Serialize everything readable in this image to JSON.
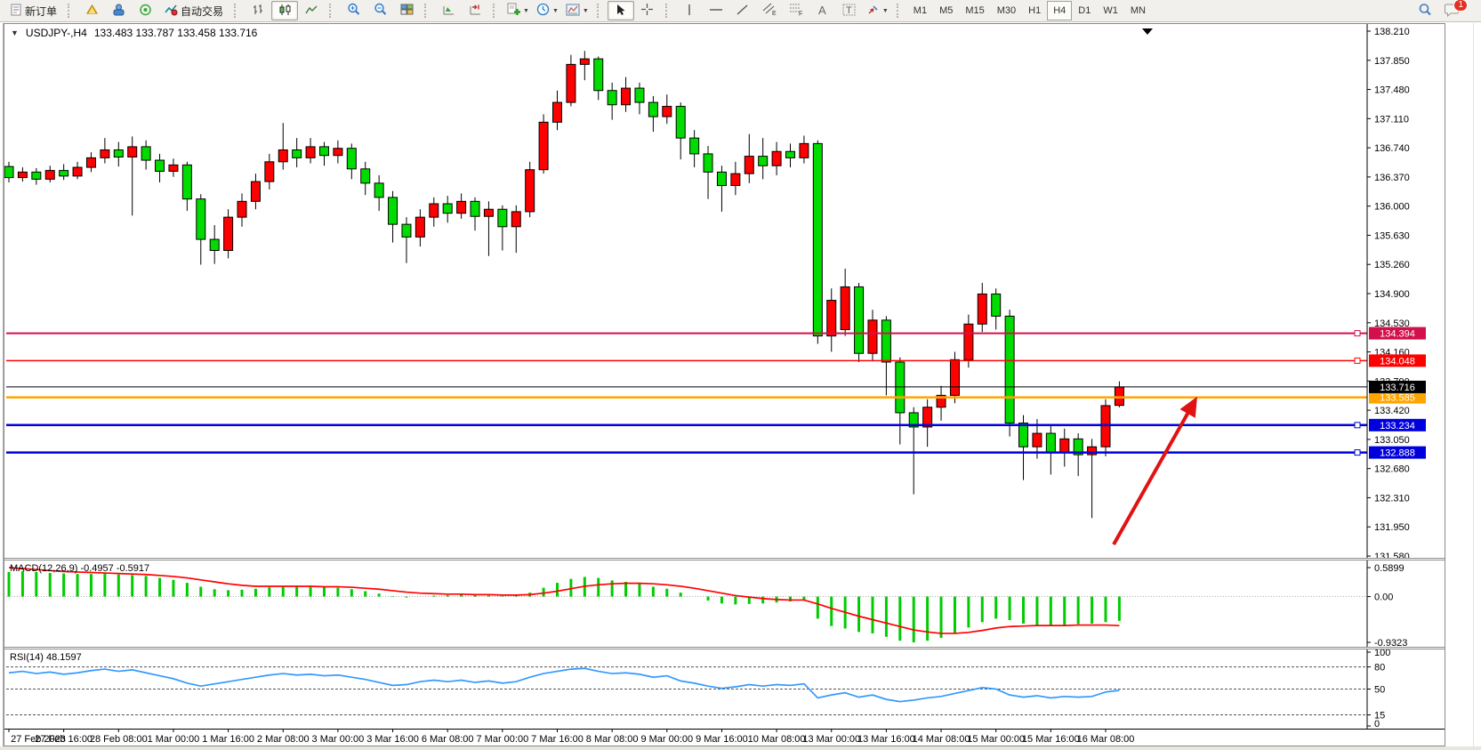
{
  "toolbar": {
    "new_order_label": "新订单",
    "autotrading_label": "自动交易",
    "timeframes": [
      "M1",
      "M5",
      "M15",
      "M30",
      "H1",
      "H4",
      "D1",
      "W1",
      "MN"
    ],
    "active_timeframe": "H4",
    "notification_badge": "1"
  },
  "chart": {
    "symbol_title": "USDJPY-,H4",
    "ohlc_title": "133.483 133.787 133.458 133.716",
    "macd_label": "MACD(12,26,9) -0.4957 -0.5917",
    "rsi_label": "RSI(14) 48.1597"
  },
  "chart_data": {
    "type": "candlestick",
    "symbol": "USDJPY-",
    "period": "H4",
    "current_bar_ohlc": {
      "open": 133.483,
      "high": 133.787,
      "low": 133.458,
      "close": 133.716
    },
    "up_color": "#ff0000",
    "down_color": "#00dc00",
    "price_axis_ticks": [
      "138.210",
      "137.850",
      "137.480",
      "137.110",
      "136.740",
      "136.370",
      "136.000",
      "135.630",
      "135.260",
      "134.900",
      "134.530",
      "134.160",
      "133.790",
      "133.420",
      "133.050",
      "132.680",
      "132.310",
      "131.950",
      "131.580"
    ],
    "hlines": [
      {
        "price": 134.394,
        "label": "134.394",
        "color": "#d2104c",
        "marker": true
      },
      {
        "price": 134.048,
        "label": "134.048",
        "color": "#ff0000",
        "marker": true
      },
      {
        "price": 133.585,
        "label": "133.585",
        "color": "#ffa500",
        "marker": false
      },
      {
        "price": 133.234,
        "label": "133.234",
        "color": "#0000dd",
        "marker": true
      },
      {
        "price": 132.888,
        "label": "132.888",
        "color": "#0000dd",
        "marker": true
      }
    ],
    "bid_line": {
      "price": 133.716,
      "label": "133.716",
      "color": "#000000"
    },
    "candles": [
      [
        136.5,
        136.56,
        136.3,
        136.36
      ],
      [
        136.36,
        136.49,
        136.31,
        136.43
      ],
      [
        136.43,
        136.48,
        136.27,
        136.34
      ],
      [
        136.34,
        136.51,
        136.3,
        136.45
      ],
      [
        136.45,
        136.53,
        136.33,
        136.38
      ],
      [
        136.38,
        136.56,
        136.34,
        136.49
      ],
      [
        136.49,
        136.68,
        136.43,
        136.61
      ],
      [
        136.61,
        136.86,
        136.54,
        136.71
      ],
      [
        136.71,
        136.81,
        136.5,
        136.62
      ],
      [
        136.62,
        136.88,
        135.88,
        136.75
      ],
      [
        136.75,
        136.83,
        136.46,
        136.58
      ],
      [
        136.58,
        136.66,
        136.3,
        136.44
      ],
      [
        136.44,
        136.6,
        136.37,
        136.52
      ],
      [
        136.52,
        136.56,
        135.94,
        136.09
      ],
      [
        136.09,
        136.15,
        135.26,
        135.58
      ],
      [
        135.58,
        135.76,
        135.27,
        135.44
      ],
      [
        135.44,
        135.96,
        135.34,
        135.86
      ],
      [
        135.86,
        136.16,
        135.74,
        136.06
      ],
      [
        136.06,
        136.41,
        135.96,
        136.31
      ],
      [
        136.31,
        136.66,
        136.21,
        136.56
      ],
      [
        136.56,
        137.05,
        136.46,
        136.71
      ],
      [
        136.71,
        136.86,
        136.49,
        136.61
      ],
      [
        136.61,
        136.86,
        136.54,
        136.75
      ],
      [
        136.75,
        136.81,
        136.51,
        136.64
      ],
      [
        136.64,
        136.83,
        136.54,
        136.73
      ],
      [
        136.73,
        136.79,
        136.34,
        136.47
      ],
      [
        136.47,
        136.56,
        136.14,
        136.29
      ],
      [
        136.29,
        136.39,
        135.94,
        136.11
      ],
      [
        136.11,
        136.19,
        135.54,
        135.77
      ],
      [
        135.77,
        135.86,
        135.28,
        135.61
      ],
      [
        135.61,
        135.96,
        135.49,
        135.86
      ],
      [
        135.86,
        136.11,
        135.74,
        136.03
      ],
      [
        136.03,
        136.13,
        135.79,
        135.91
      ],
      [
        135.91,
        136.16,
        135.84,
        136.06
      ],
      [
        136.06,
        136.11,
        135.69,
        135.87
      ],
      [
        135.87,
        136.06,
        135.37,
        135.96
      ],
      [
        135.96,
        136.01,
        135.44,
        135.74
      ],
      [
        135.74,
        136.01,
        135.41,
        135.93
      ],
      [
        135.93,
        136.56,
        135.86,
        136.46
      ],
      [
        136.46,
        137.16,
        136.41,
        137.06
      ],
      [
        137.06,
        137.46,
        136.96,
        137.31
      ],
      [
        137.31,
        137.91,
        137.26,
        137.79
      ],
      [
        137.79,
        137.96,
        137.59,
        137.86
      ],
      [
        137.86,
        137.89,
        137.34,
        137.46
      ],
      [
        137.46,
        137.56,
        137.09,
        137.28
      ],
      [
        137.28,
        137.63,
        137.19,
        137.49
      ],
      [
        137.49,
        137.56,
        137.16,
        137.31
      ],
      [
        137.31,
        137.39,
        136.94,
        137.13
      ],
      [
        137.13,
        137.41,
        137.04,
        137.26
      ],
      [
        137.26,
        137.31,
        136.59,
        136.86
      ],
      [
        136.86,
        136.96,
        136.49,
        136.66
      ],
      [
        136.66,
        136.76,
        136.09,
        136.43
      ],
      [
        136.43,
        136.51,
        135.93,
        136.26
      ],
      [
        136.26,
        136.56,
        136.14,
        136.41
      ],
      [
        136.41,
        136.91,
        136.29,
        136.63
      ],
      [
        136.63,
        136.86,
        136.34,
        136.51
      ],
      [
        136.51,
        136.81,
        136.39,
        136.69
      ],
      [
        136.69,
        136.79,
        136.49,
        136.61
      ],
      [
        136.61,
        136.89,
        136.54,
        136.79
      ],
      [
        136.79,
        136.83,
        134.26,
        134.36
      ],
      [
        134.36,
        134.96,
        134.16,
        134.81
      ],
      [
        134.44,
        135.21,
        134.36,
        134.98
      ],
      [
        134.98,
        135.03,
        134.03,
        134.14
      ],
      [
        134.14,
        134.69,
        134.04,
        134.56
      ],
      [
        134.56,
        134.61,
        133.61,
        134.03
      ],
      [
        134.03,
        134.09,
        132.99,
        133.39
      ],
      [
        133.39,
        133.46,
        132.36,
        133.21
      ],
      [
        133.21,
        133.56,
        132.96,
        133.46
      ],
      [
        133.46,
        133.73,
        133.29,
        133.61
      ],
      [
        133.61,
        134.16,
        133.51,
        134.06
      ],
      [
        134.06,
        134.63,
        133.96,
        134.51
      ],
      [
        134.51,
        135.03,
        134.41,
        134.89
      ],
      [
        134.89,
        134.96,
        134.44,
        134.61
      ],
      [
        134.61,
        134.69,
        133.09,
        133.26
      ],
      [
        133.26,
        133.36,
        132.54,
        132.96
      ],
      [
        132.96,
        133.31,
        132.81,
        133.13
      ],
      [
        133.13,
        133.23,
        132.61,
        132.89
      ],
      [
        132.89,
        133.19,
        132.71,
        133.06
      ],
      [
        133.06,
        133.13,
        132.59,
        132.86
      ],
      [
        132.86,
        133.06,
        132.06,
        132.96
      ],
      [
        132.96,
        133.56,
        132.84,
        133.48
      ],
      [
        133.483,
        133.787,
        133.458,
        133.716
      ]
    ],
    "macd": {
      "params": "12,26,9",
      "axis_labels": [
        "0.5899",
        "0.00",
        "-0.9323"
      ],
      "max": 0.5899,
      "min": -0.9323,
      "hist_color": "#00cc00",
      "signal_color": "#ff0000",
      "histogram": [
        0.5,
        0.52,
        0.5,
        0.48,
        0.47,
        0.46,
        0.46,
        0.47,
        0.45,
        0.44,
        0.42,
        0.38,
        0.34,
        0.28,
        0.2,
        0.15,
        0.13,
        0.14,
        0.16,
        0.19,
        0.21,
        0.21,
        0.2,
        0.19,
        0.18,
        0.15,
        0.11,
        0.06,
        0.01,
        -0.02,
        0.0,
        0.02,
        0.03,
        0.04,
        0.03,
        0.02,
        0.01,
        0.02,
        0.08,
        0.18,
        0.28,
        0.36,
        0.4,
        0.38,
        0.33,
        0.3,
        0.26,
        0.2,
        0.16,
        0.08,
        0.0,
        -0.08,
        -0.14,
        -0.16,
        -0.15,
        -0.14,
        -0.12,
        -0.1,
        -0.08,
        -0.45,
        -0.6,
        -0.65,
        -0.72,
        -0.75,
        -0.82,
        -0.9,
        -0.9323,
        -0.9,
        -0.84,
        -0.75,
        -0.63,
        -0.52,
        -0.45,
        -0.48,
        -0.55,
        -0.58,
        -0.6,
        -0.58,
        -0.56,
        -0.55,
        -0.52,
        -0.4957
      ],
      "signal": [
        0.5899,
        0.57,
        0.55,
        0.53,
        0.51,
        0.5,
        0.49,
        0.48,
        0.47,
        0.46,
        0.45,
        0.43,
        0.41,
        0.38,
        0.34,
        0.3,
        0.26,
        0.23,
        0.21,
        0.21,
        0.21,
        0.21,
        0.21,
        0.2,
        0.2,
        0.19,
        0.17,
        0.15,
        0.12,
        0.09,
        0.07,
        0.06,
        0.05,
        0.05,
        0.04,
        0.04,
        0.03,
        0.03,
        0.04,
        0.07,
        0.11,
        0.16,
        0.21,
        0.24,
        0.26,
        0.27,
        0.27,
        0.26,
        0.24,
        0.21,
        0.17,
        0.12,
        0.07,
        0.02,
        -0.01,
        -0.04,
        -0.06,
        -0.07,
        -0.07,
        -0.15,
        -0.24,
        -0.32,
        -0.4,
        -0.47,
        -0.54,
        -0.61,
        -0.68,
        -0.72,
        -0.75,
        -0.75,
        -0.73,
        -0.69,
        -0.64,
        -0.61,
        -0.6,
        -0.59,
        -0.59,
        -0.59,
        -0.58,
        -0.58,
        -0.58,
        -0.5917
      ]
    },
    "rsi": {
      "period": 14,
      "value": 48.1597,
      "color": "#3399ff",
      "axis_labels": [
        "100",
        "80",
        "50",
        "15",
        "0"
      ],
      "levels": [
        100,
        80,
        50,
        15,
        0
      ],
      "dashed_levels": [
        80,
        50,
        15
      ],
      "values": [
        72,
        74,
        71,
        73,
        70,
        72,
        75,
        77,
        74,
        76,
        72,
        68,
        64,
        58,
        54,
        57,
        60,
        63,
        66,
        69,
        71,
        69,
        70,
        68,
        69,
        66,
        63,
        59,
        55,
        56,
        60,
        62,
        60,
        62,
        59,
        61,
        58,
        60,
        66,
        71,
        74,
        77,
        78,
        74,
        71,
        72,
        70,
        66,
        68,
        61,
        58,
        54,
        51,
        53,
        56,
        54,
        56,
        55,
        57,
        38,
        42,
        45,
        39,
        42,
        36,
        33,
        35,
        38,
        40,
        44,
        48,
        52,
        50,
        42,
        39,
        41,
        38,
        40,
        39,
        40,
        46,
        48.16
      ],
      "ylim": [
        0,
        100
      ]
    },
    "time_labels": [
      "27 Feb 2023",
      "27 Feb 16:00",
      "28 Feb 08:00",
      "1 Mar 00:00",
      "1 Mar 16:00",
      "2 Mar 08:00",
      "3 Mar 00:00",
      "3 Mar 16:00",
      "6 Mar 08:00",
      "7 Mar 00:00",
      "7 Mar 16:00",
      "8 Mar 08:00",
      "9 Mar 00:00",
      "9 Mar 16:00",
      "10 Mar 08:00",
      "13 Mar 00:00",
      "13 Mar 16:00",
      "14 Mar 08:00",
      "15 Mar 00:00",
      "15 Mar 16:00",
      "16 Mar 08:00"
    ],
    "annotation_arrow": {
      "color": "#e01212"
    }
  }
}
